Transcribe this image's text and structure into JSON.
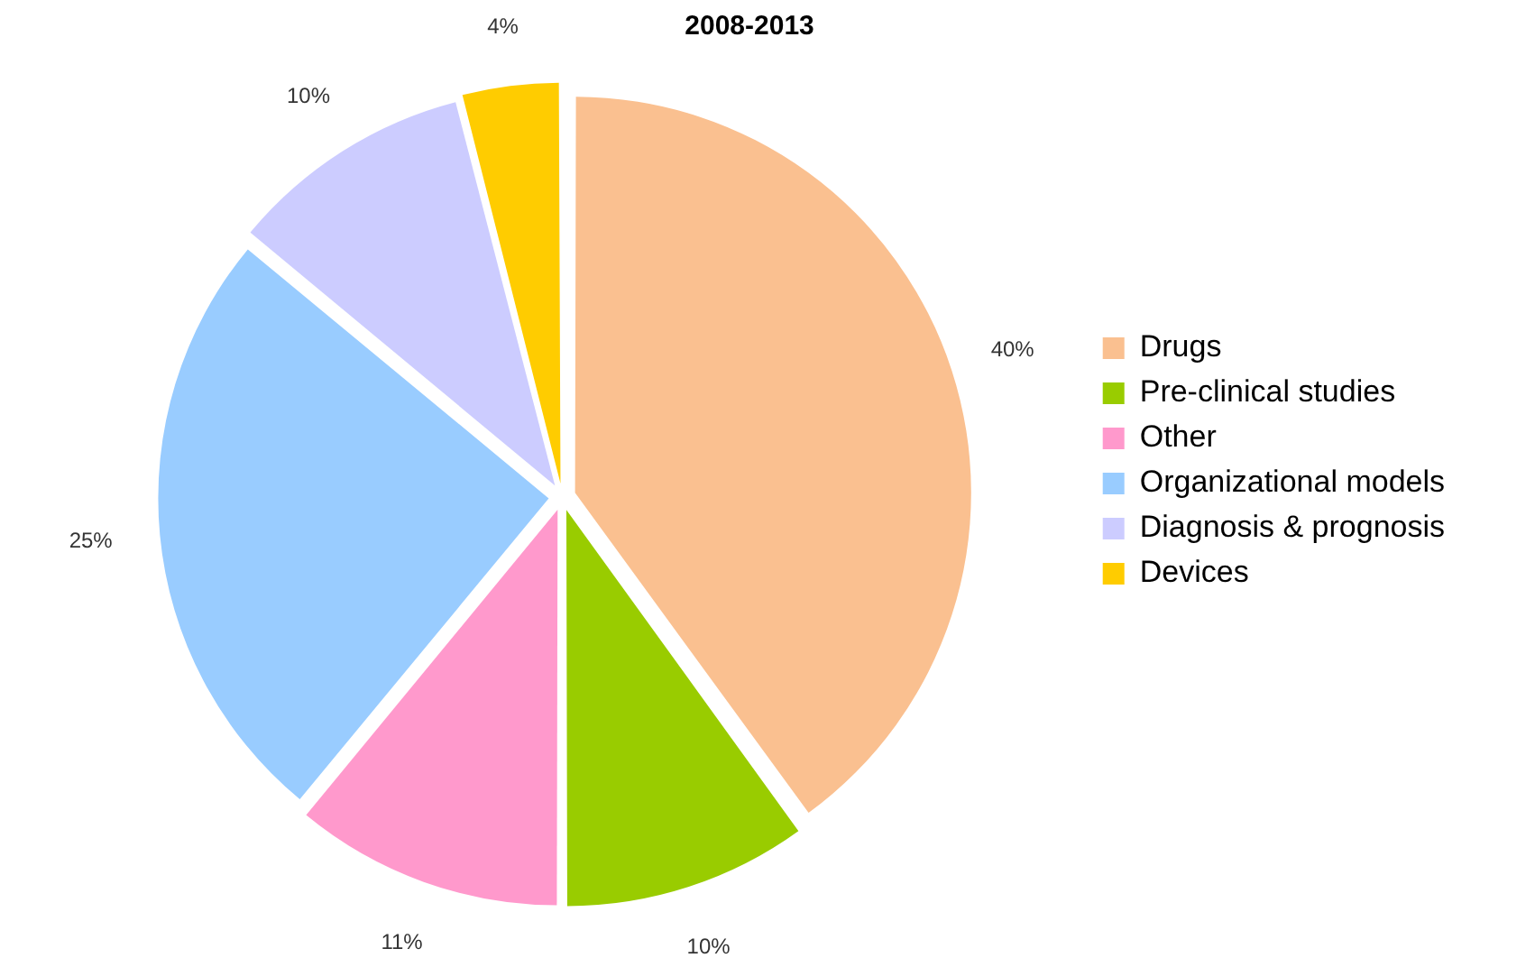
{
  "chart_data": {
    "type": "pie",
    "title": "2008-2013",
    "categories": [
      "Drugs",
      "Pre-clinical studies",
      "Other",
      "Organizational models",
      "Diagnosis & prognosis",
      "Devices"
    ],
    "values": [
      40,
      10,
      11,
      25,
      10,
      4
    ],
    "value_labels": [
      "40%",
      "10%",
      "11%",
      "25%",
      "10%",
      "4%"
    ],
    "colors": [
      "#fac090",
      "#99cc00",
      "#ff99cc",
      "#99ccff",
      "#ccccff",
      "#ffcc00"
    ],
    "legend": "right"
  }
}
